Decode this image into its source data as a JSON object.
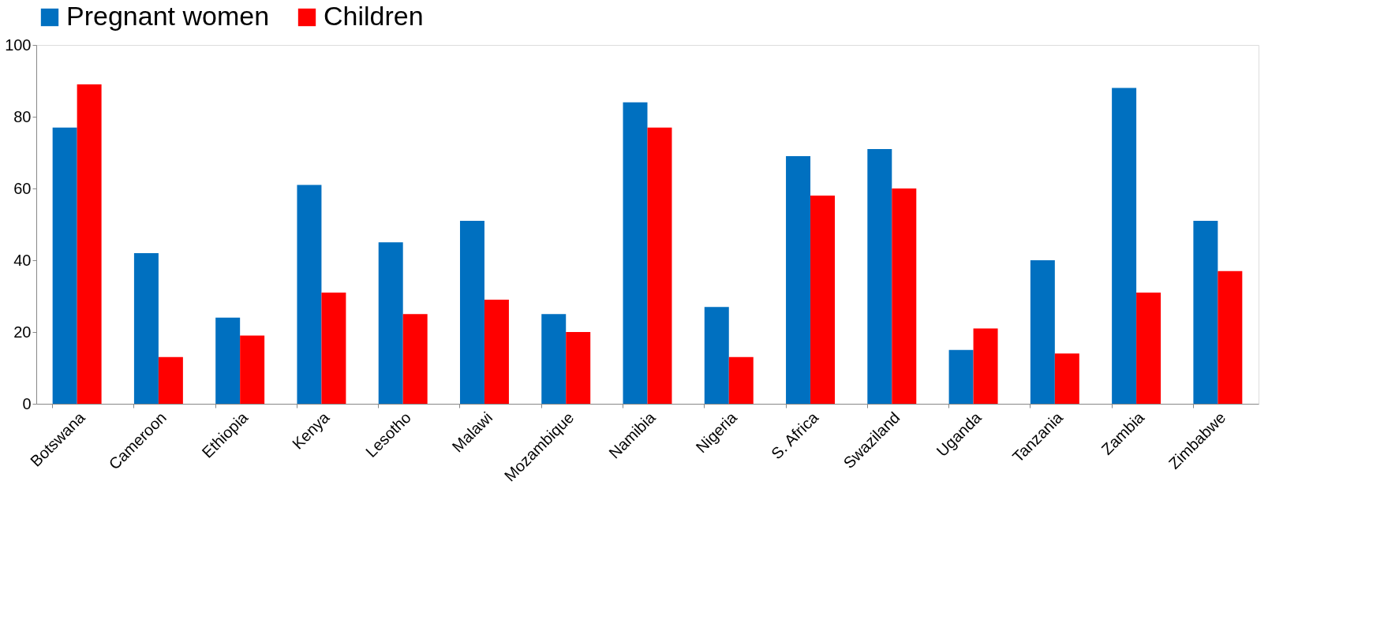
{
  "chart_data": {
    "type": "bar",
    "categories": [
      "Botswana",
      "Cameroon",
      "Ethiopia",
      "Kenya",
      "Lesotho",
      "Malawi",
      "Mozambique",
      "Namibia",
      "Nigeria",
      "S. Africa",
      "Swaziland",
      "Uganda",
      "Tanzania",
      "Zambia",
      "Zimbabwe"
    ],
    "series": [
      {
        "name": "Pregnant women",
        "color": "#0070c0",
        "values": [
          77,
          42,
          24,
          61,
          45,
          51,
          25,
          84,
          27,
          69,
          71,
          15,
          40,
          88,
          51
        ]
      },
      {
        "name": "Children",
        "color": "#ff0000",
        "values": [
          89,
          13,
          19,
          31,
          25,
          29,
          20,
          77,
          13,
          58,
          60,
          21,
          14,
          31,
          37
        ]
      }
    ],
    "ylim": [
      0,
      100
    ],
    "yticks": [
      0,
      20,
      40,
      60,
      80,
      100
    ],
    "grid": false,
    "legend": "top"
  }
}
